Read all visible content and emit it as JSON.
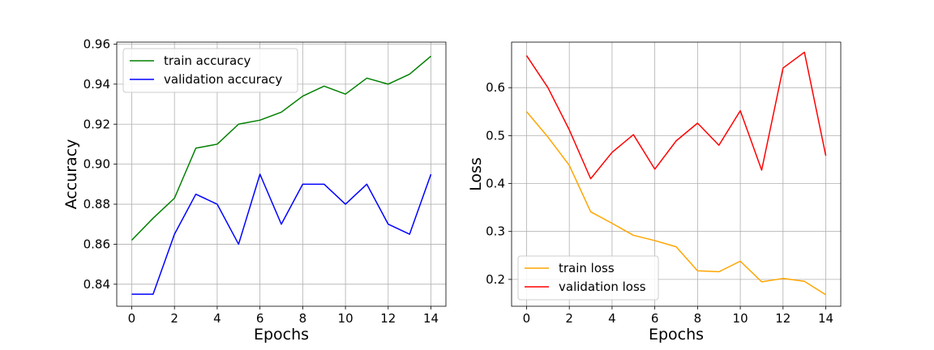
{
  "chart_data": [
    {
      "type": "line",
      "xlabel": "Epochs",
      "ylabel": "Accuracy",
      "xlim": [
        -0.7,
        14.7
      ],
      "ylim": [
        0.829,
        0.961
      ],
      "xticks": [
        0,
        2,
        4,
        6,
        8,
        10,
        12,
        14
      ],
      "yticks": [
        0.84,
        0.86,
        0.88,
        0.9,
        0.92,
        0.94,
        0.96
      ],
      "ytick_labels": [
        "0.84",
        "0.86",
        "0.88",
        "0.90",
        "0.92",
        "0.94",
        "0.96"
      ],
      "grid": true,
      "legend": "top-left",
      "x": [
        0,
        1,
        2,
        3,
        4,
        5,
        6,
        7,
        8,
        9,
        10,
        11,
        12,
        13,
        14
      ],
      "series": [
        {
          "name": "train accuracy",
          "color": "#008000",
          "values": [
            0.862,
            0.873,
            0.883,
            0.908,
            0.91,
            0.92,
            0.922,
            0.926,
            0.934,
            0.939,
            0.935,
            0.943,
            0.94,
            0.945,
            0.954
          ]
        },
        {
          "name": "validation accuracy",
          "color": "#0000ff",
          "values": [
            0.835,
            0.835,
            0.865,
            0.885,
            0.88,
            0.86,
            0.895,
            0.87,
            0.89,
            0.89,
            0.88,
            0.89,
            0.87,
            0.865,
            0.895
          ]
        }
      ]
    },
    {
      "type": "line",
      "xlabel": "Epochs",
      "ylabel": "Loss",
      "xlim": [
        -0.7,
        14.7
      ],
      "ylim": [
        0.144,
        0.695
      ],
      "xticks": [
        0,
        2,
        4,
        6,
        8,
        10,
        12,
        14
      ],
      "yticks": [
        0.2,
        0.3,
        0.4,
        0.5,
        0.6
      ],
      "ytick_labels": [
        "0.2",
        "0.3",
        "0.4",
        "0.5",
        "0.6"
      ],
      "grid": true,
      "legend": "bottom-left",
      "x": [
        0,
        1,
        2,
        3,
        4,
        5,
        6,
        7,
        8,
        9,
        10,
        11,
        12,
        13,
        14
      ],
      "series": [
        {
          "name": "train loss",
          "color": "#ffa500",
          "values": [
            0.55,
            0.497,
            0.438,
            0.341,
            0.317,
            0.292,
            0.281,
            0.268,
            0.218,
            0.216,
            0.238,
            0.195,
            0.202,
            0.196,
            0.168
          ]
        },
        {
          "name": "validation loss",
          "color": "#ff0000",
          "values": [
            0.667,
            0.6,
            0.512,
            0.41,
            0.465,
            0.502,
            0.43,
            0.489,
            0.526,
            0.48,
            0.552,
            0.428,
            0.641,
            0.674,
            0.458
          ]
        }
      ]
    }
  ]
}
